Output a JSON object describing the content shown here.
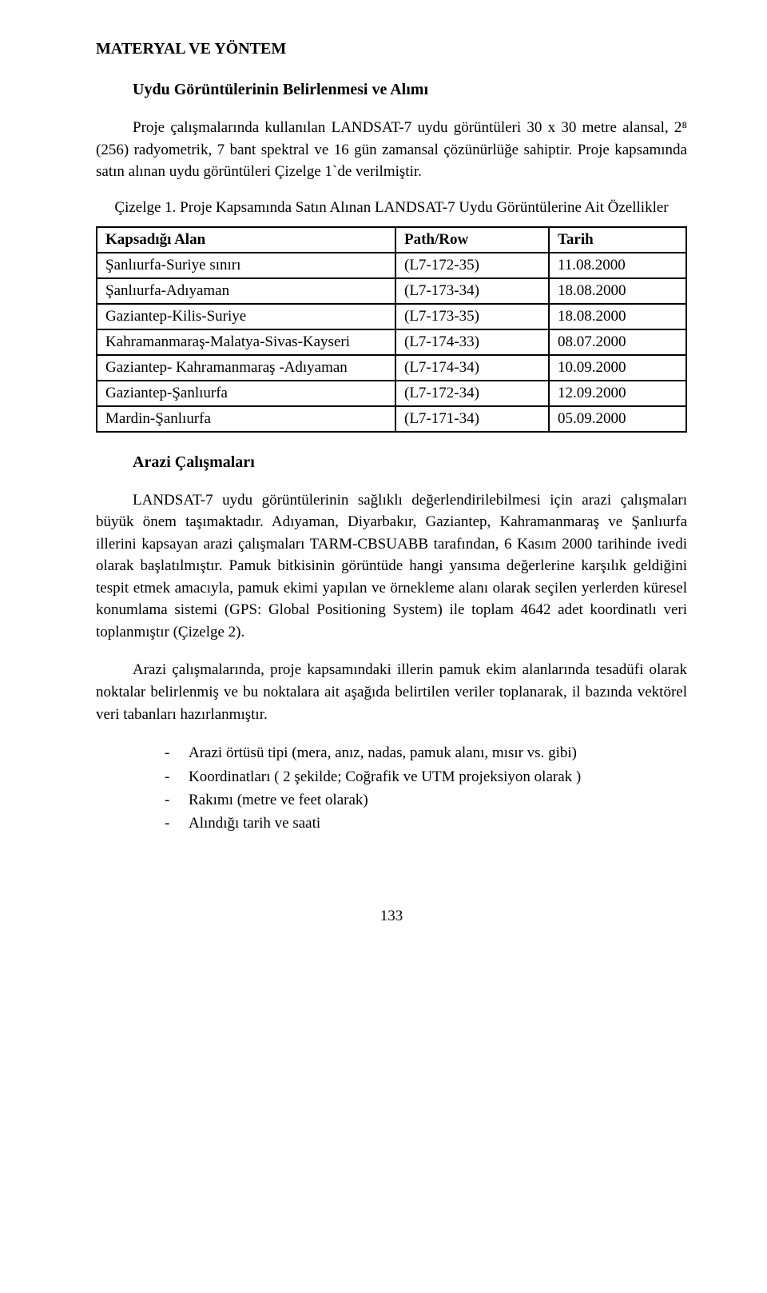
{
  "heading1": "MATERYAL VE YÖNTEM",
  "heading2": "Uydu Görüntülerinin Belirlenmesi ve Alımı",
  "para1": "Proje çalışmalarında kullanılan LANDSAT-7 uydu görüntüleri 30 x 30 metre alansal, 2⁸ (256) radyometrik, 7 bant spektral ve 16 gün zamansal çözünürlüğe sahiptir. Proje kapsamında satın alınan uydu görüntüleri Çizelge 1`de verilmiştir.",
  "caption1": "Çizelge 1. Proje Kapsamında Satın Alınan LANDSAT-7 Uydu Görüntülerine Ait Özellikler",
  "table": {
    "headers": [
      "Kapsadığı Alan",
      "Path/Row",
      "Tarih"
    ],
    "rows": [
      [
        "Şanlıurfa-Suriye sınırı",
        "(L7-172-35)",
        "11.08.2000"
      ],
      [
        "Şanlıurfa-Adıyaman",
        "(L7-173-34)",
        "18.08.2000"
      ],
      [
        "Gaziantep-Kilis-Suriye",
        "(L7-173-35)",
        "18.08.2000"
      ],
      [
        "Kahramanmaraş-Malatya-Sivas-Kayseri",
        "(L7-174-33)",
        "08.07.2000"
      ],
      [
        "Gaziantep- Kahramanmaraş -Adıyaman",
        "(L7-174-34)",
        "10.09.2000"
      ],
      [
        "Gaziantep-Şanlıurfa",
        "(L7-172-34)",
        "12.09.2000"
      ],
      [
        "Mardin-Şanlıurfa",
        "(L7-171-34)",
        "05.09.2000"
      ]
    ]
  },
  "heading3": "Arazi Çalışmaları",
  "para2": "LANDSAT-7 uydu görüntülerinin sağlıklı değerlendirilebilmesi için arazi çalışmaları büyük önem taşımaktadır. Adıyaman, Diyarbakır, Gaziantep, Kahramanmaraş ve Şanlıurfa illerini kapsayan arazi çalışmaları TARM-CBSUABB tarafından, 6 Kasım 2000 tarihinde ivedi olarak başlatılmıştır. Pamuk bitkisinin görüntüde hangi yansıma değerlerine karşılık geldiğini tespit etmek amacıyla, pamuk ekimi yapılan ve örnekleme alanı olarak seçilen yerlerden küresel konumlama sistemi (GPS: Global Positioning System) ile toplam 4642 adet koordinatlı veri toplanmıştır (Çizelge 2).",
  "para3": "Arazi çalışmalarında, proje kapsamındaki illerin pamuk ekim alanlarında tesadüfi olarak noktalar belirlenmiş ve bu noktalara ait aşağıda belirtilen veriler toplanarak, il bazında vektörel veri tabanları hazırlanmıştır.",
  "bullets": [
    "Arazi örtüsü tipi (mera, anız, nadas, pamuk alanı, mısır vs. gibi)",
    "Koordinatları ( 2 şekilde; Coğrafik ve UTM projeksiyon olarak )",
    "Rakımı (metre ve feet olarak)",
    "Alındığı tarih ve saati"
  ],
  "pageNumber": "133"
}
